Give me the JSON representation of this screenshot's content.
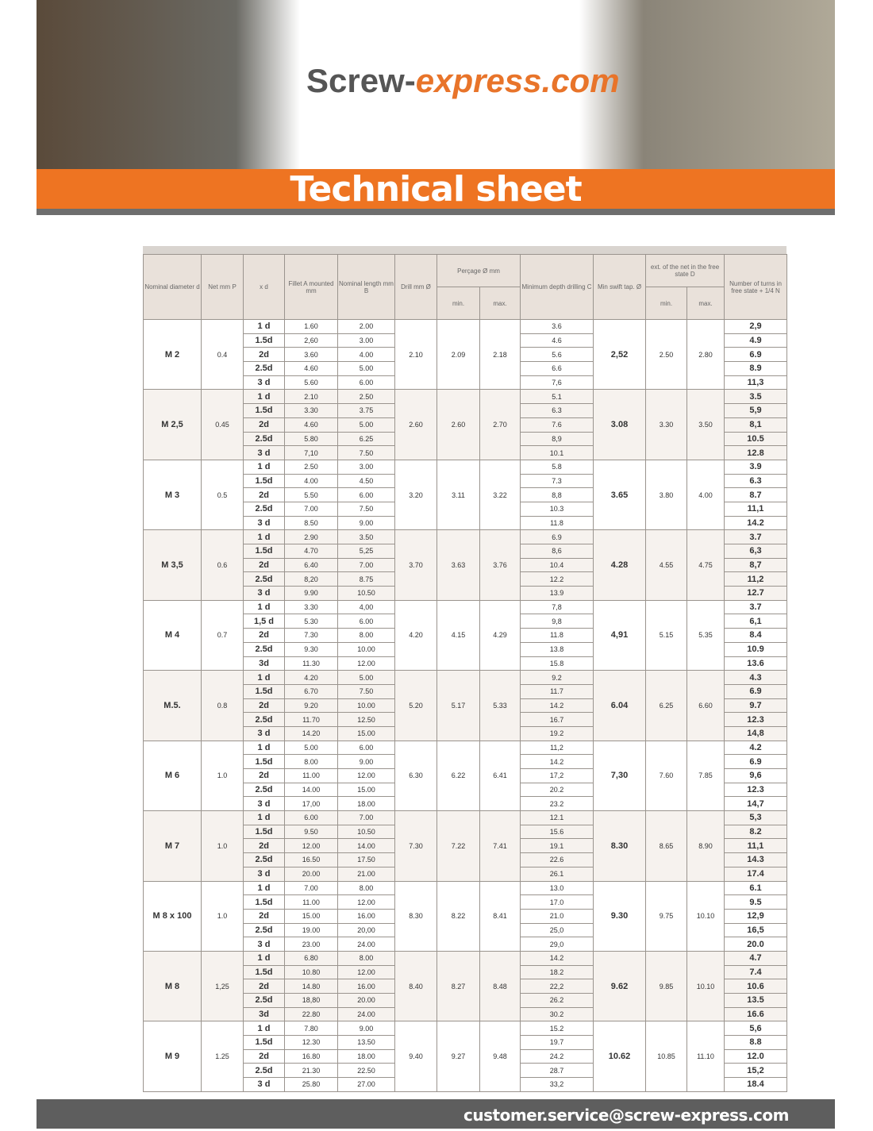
{
  "brand": {
    "left": "Screw-",
    "right": "express.com"
  },
  "title": "Technical sheet",
  "table": {
    "header": {
      "diameter": "Nominal diameter d",
      "pitch": "Net mm P",
      "xd": "x d",
      "fillet": "Fillet A mounted mm",
      "length": "Nominal length mm B",
      "drill": "Drill mm Ø",
      "percage": "Perçage Ø mm",
      "percage_min": "min.",
      "percage_max": "max.",
      "depth": "Minimum depth drilling C",
      "tap": "Min swift tap. Ø",
      "ext": "ext. of the net in the free state D",
      "ext_min": "min.",
      "ext_max": "max.",
      "turns": "Number of turns in free state + 1/4 N"
    },
    "groups": [
      {
        "d": "M 2",
        "p": "0.4",
        "drill": "2.10",
        "min": "2.09",
        "max": "2.18",
        "tap": "2,52",
        "dmin": "2.50",
        "dmax": "2.80",
        "rows": [
          [
            "1 d",
            "1.60",
            "2.00",
            "3.6",
            "2,9"
          ],
          [
            "1.5d",
            "2,60",
            "3.00",
            "4.6",
            "4.9"
          ],
          [
            "2d",
            "3.60",
            "4.00",
            "5.6",
            "6.9"
          ],
          [
            "2.5d",
            "4.60",
            "5.00",
            "6.6",
            "8.9"
          ],
          [
            "3 d",
            "5.60",
            "6.00",
            "7,6",
            "11,3"
          ]
        ]
      },
      {
        "d": "M 2,5",
        "p": "0.45",
        "drill": "2.60",
        "min": "2.60",
        "max": "2.70",
        "tap": "3.08",
        "dmin": "3.30",
        "dmax": "3.50",
        "rows": [
          [
            "1 d",
            "2.10",
            "2.50",
            "5.1",
            "3.5"
          ],
          [
            "1.5d",
            "3.30",
            "3.75",
            "6.3",
            "5,9"
          ],
          [
            "2d",
            "4.60",
            "5.00",
            "7.6",
            "8,1"
          ],
          [
            "2.5d",
            "5.80",
            "6.25",
            "8,9",
            "10.5"
          ],
          [
            "3 d",
            "7,10",
            "7.50",
            "10.1",
            "12.8"
          ]
        ]
      },
      {
        "d": "M 3",
        "p": "0.5",
        "drill": "3.20",
        "min": "3.11",
        "max": "3.22",
        "tap": "3.65",
        "dmin": "3.80",
        "dmax": "4.00",
        "rows": [
          [
            "1 d",
            "2.50",
            "3.00",
            "5.8",
            "3.9"
          ],
          [
            "1.5d",
            "4.00",
            "4.50",
            "7.3",
            "6.3"
          ],
          [
            "2d",
            "5.50",
            "6.00",
            "8,8",
            "8.7"
          ],
          [
            "2.5d",
            "7.00",
            "7.50",
            "10.3",
            "11,1"
          ],
          [
            "3 d",
            "8.50",
            "9.00",
            "11.8",
            "14.2"
          ]
        ]
      },
      {
        "d": "M 3,5",
        "p": "0.6",
        "drill": "3.70",
        "min": "3.63",
        "max": "3.76",
        "tap": "4.28",
        "dmin": "4.55",
        "dmax": "4.75",
        "rows": [
          [
            "1 d",
            "2.90",
            "3.50",
            "6.9",
            "3.7"
          ],
          [
            "1.5d",
            "4.70",
            "5,25",
            "8,6",
            "6,3"
          ],
          [
            "2d",
            "6.40",
            "7.00",
            "10.4",
            "8,7"
          ],
          [
            "2.5d",
            "8,20",
            "8.75",
            "12.2",
            "11,2"
          ],
          [
            "3 d",
            "9.90",
            "10.50",
            "13.9",
            "12.7"
          ]
        ]
      },
      {
        "d": "M 4",
        "p": "0.7",
        "drill": "4.20",
        "min": "4.15",
        "max": "4.29",
        "tap": "4,91",
        "dmin": "5.15",
        "dmax": "5.35",
        "rows": [
          [
            "1 d",
            "3.30",
            "4,00",
            "7,8",
            "3.7"
          ],
          [
            "1,5 d",
            "5.30",
            "6.00",
            "9,8",
            "6,1"
          ],
          [
            "2d",
            "7.30",
            "8.00",
            "11.8",
            "8.4"
          ],
          [
            "2.5d",
            "9.30",
            "10.00",
            "13.8",
            "10.9"
          ],
          [
            "3d",
            "11.30",
            "12.00",
            "15.8",
            "13.6"
          ]
        ]
      },
      {
        "d": "M.5.",
        "p": "0.8",
        "drill": "5.20",
        "min": "5.17",
        "max": "5.33",
        "tap": "6.04",
        "dmin": "6.25",
        "dmax": "6.60",
        "rows": [
          [
            "1 d",
            "4.20",
            "5.00",
            "9.2",
            "4.3"
          ],
          [
            "1.5d",
            "6.70",
            "7.50",
            "11.7",
            "6.9"
          ],
          [
            "2d",
            "9.20",
            "10.00",
            "14.2",
            "9.7"
          ],
          [
            "2.5d",
            "11.70",
            "12.50",
            "16.7",
            "12.3"
          ],
          [
            "3 d",
            "14.20",
            "15.00",
            "19.2",
            "14,8"
          ]
        ]
      },
      {
        "d": "M 6",
        "p": "1.0",
        "drill": "6.30",
        "min": "6.22",
        "max": "6.41",
        "tap": "7,30",
        "dmin": "7.60",
        "dmax": "7.85",
        "rows": [
          [
            "1 d",
            "5.00",
            "6.00",
            "11,2",
            "4.2"
          ],
          [
            "1.5d",
            "8.00",
            "9.00",
            "14.2",
            "6.9"
          ],
          [
            "2d",
            "11.00",
            "12.00",
            "17,2",
            "9,6"
          ],
          [
            "2.5d",
            "14.00",
            "15.00",
            "20.2",
            "12.3"
          ],
          [
            "3 d",
            "17,00",
            "18.00",
            "23.2",
            "14,7"
          ]
        ]
      },
      {
        "d": "M 7",
        "p": "1.0",
        "drill": "7.30",
        "min": "7.22",
        "max": "7.41",
        "tap": "8.30",
        "dmin": "8.65",
        "dmax": "8.90",
        "rows": [
          [
            "1 d",
            "6.00",
            "7.00",
            "12.1",
            "5,3"
          ],
          [
            "1.5d",
            "9.50",
            "10.50",
            "15.6",
            "8.2"
          ],
          [
            "2d",
            "12.00",
            "14.00",
            "19.1",
            "11,1"
          ],
          [
            "2.5d",
            "16.50",
            "17.50",
            "22.6",
            "14.3"
          ],
          [
            "3 d",
            "20.00",
            "21.00",
            "26.1",
            "17.4"
          ]
        ]
      },
      {
        "d": "M 8 x 100",
        "p": "1.0",
        "drill": "8.30",
        "min": "8.22",
        "max": "8.41",
        "tap": "9.30",
        "dmin": "9.75",
        "dmax": "10.10",
        "rows": [
          [
            "1 d",
            "7.00",
            "8.00",
            "13.0",
            "6.1"
          ],
          [
            "1.5d",
            "11.00",
            "12.00",
            "17.0",
            "9.5"
          ],
          [
            "2d",
            "15.00",
            "16.00",
            "21.0",
            "12,9"
          ],
          [
            "2.5d",
            "19.00",
            "20,00",
            "25,0",
            "16,5"
          ],
          [
            "3 d",
            "23.00",
            "24.00",
            "29,0",
            "20.0"
          ]
        ]
      },
      {
        "d": "M 8",
        "p": "1,25",
        "drill": "8.40",
        "min": "8.27",
        "max": "8.48",
        "tap": "9.62",
        "dmin": "9.85",
        "dmax": "10.10",
        "rows": [
          [
            "1 d",
            "6.80",
            "8.00",
            "14.2",
            "4.7"
          ],
          [
            "1.5d",
            "10.80",
            "12.00",
            "18.2",
            "7.4"
          ],
          [
            "2d",
            "14.80",
            "16.00",
            "22,2",
            "10.6"
          ],
          [
            "2.5d",
            "18,80",
            "20.00",
            "26.2",
            "13.5"
          ],
          [
            "3d",
            "22.80",
            "24.00",
            "30.2",
            "16.6"
          ]
        ]
      },
      {
        "d": "M 9",
        "p": "1.25",
        "drill": "9.40",
        "min": "9.27",
        "max": "9.48",
        "tap": "10.62",
        "dmin": "10.85",
        "dmax": "11.10",
        "rows": [
          [
            "1 d",
            "7.80",
            "9.00",
            "15.2",
            "5,6"
          ],
          [
            "1.5d",
            "12.30",
            "13.50",
            "19.7",
            "8.8"
          ],
          [
            "2d",
            "16.80",
            "18.00",
            "24.2",
            "12.0"
          ],
          [
            "2.5d",
            "21.30",
            "22.50",
            "28.7",
            "15,2"
          ],
          [
            "3 d",
            "25.80",
            "27.00",
            "33,2",
            "18.4"
          ]
        ]
      }
    ]
  },
  "footer": {
    "email": "customer.service@screw-express.com"
  }
}
